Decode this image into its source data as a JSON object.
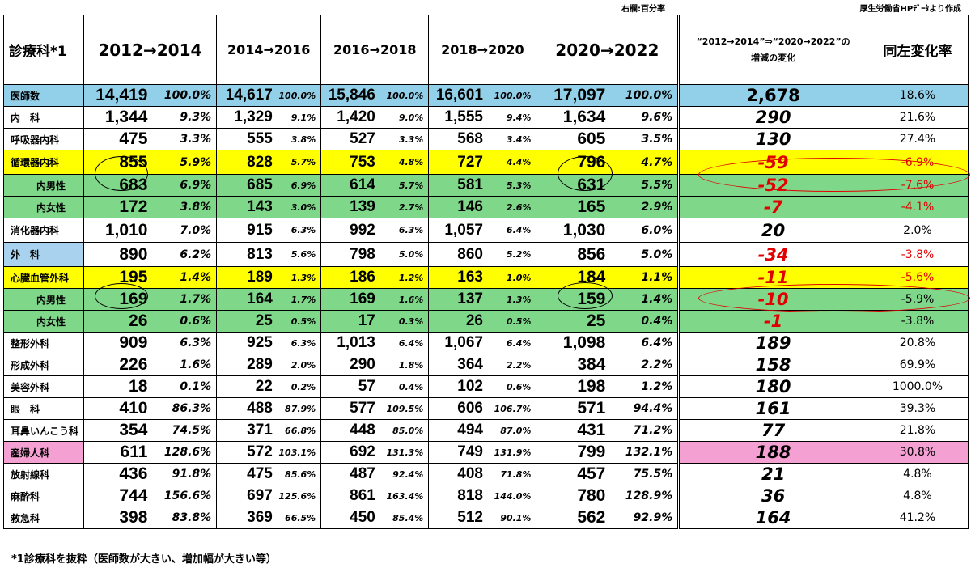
{
  "note_right": "右欄:百分率",
  "note_source": "厚生労働省HPﾃﾞｰﾀより作成",
  "header": {
    "dept": "診療科*1",
    "periods": [
      "2012→2014",
      "2014→2016",
      "2016→2018",
      "2018→2020",
      "2020→2022"
    ],
    "change_line1": "“2012→2014”⇒“2020→2022”の",
    "change_line2": "増減の変化",
    "rate": "同左変化率"
  },
  "rows": [
    {
      "name": "医師数",
      "vals": [
        [
          "14,419",
          "100.0%"
        ],
        [
          "14,617",
          "100.0%"
        ],
        [
          "15,846",
          "100.0%"
        ],
        [
          "16,601",
          "100.0%"
        ],
        [
          "17,097",
          "100.0%"
        ]
      ],
      "change": "2,678",
      "rate": "18.6%"
    },
    {
      "name": "内　科",
      "vals": [
        [
          "1,344",
          "9.3%"
        ],
        [
          "1,329",
          "9.1%"
        ],
        [
          "1,420",
          "9.0%"
        ],
        [
          "1,555",
          "9.4%"
        ],
        [
          "1,634",
          "9.6%"
        ]
      ],
      "change": "290",
      "rate": "21.6%"
    },
    {
      "name": "呼吸器内科",
      "vals": [
        [
          "475",
          "3.3%"
        ],
        [
          "555",
          "3.8%"
        ],
        [
          "527",
          "3.3%"
        ],
        [
          "568",
          "3.4%"
        ],
        [
          "605",
          "3.5%"
        ]
      ],
      "change": "130",
      "rate": "27.4%"
    },
    {
      "name": "循環器内科",
      "vals": [
        [
          "855",
          "5.9%"
        ],
        [
          "828",
          "5.7%"
        ],
        [
          "753",
          "4.8%"
        ],
        [
          "727",
          "4.4%"
        ],
        [
          "796",
          "4.7%"
        ]
      ],
      "change": "-59",
      "rate": "-6.9%"
    },
    {
      "name": "内男性",
      "vals": [
        [
          "683",
          "6.9%"
        ],
        [
          "685",
          "6.9%"
        ],
        [
          "614",
          "5.7%"
        ],
        [
          "581",
          "5.3%"
        ],
        [
          "631",
          "5.5%"
        ]
      ],
      "change": "-52",
      "rate": "-7.6%"
    },
    {
      "name": "内女性",
      "vals": [
        [
          "172",
          "3.8%"
        ],
        [
          "143",
          "3.0%"
        ],
        [
          "139",
          "2.7%"
        ],
        [
          "146",
          "2.6%"
        ],
        [
          "165",
          "2.9%"
        ]
      ],
      "change": "-7",
      "rate": "-4.1%"
    },
    {
      "name": "消化器内科",
      "vals": [
        [
          "1,010",
          "7.0%"
        ],
        [
          "915",
          "6.3%"
        ],
        [
          "992",
          "6.3%"
        ],
        [
          "1,057",
          "6.4%"
        ],
        [
          "1,030",
          "6.0%"
        ]
      ],
      "change": "20",
      "rate": "2.0%"
    },
    {
      "name": "外　科",
      "vals": [
        [
          "890",
          "6.2%"
        ],
        [
          "813",
          "5.6%"
        ],
        [
          "798",
          "5.0%"
        ],
        [
          "860",
          "5.2%"
        ],
        [
          "856",
          "5.0%"
        ]
      ],
      "change": "-34",
      "rate": "-3.8%"
    },
    {
      "name": "心臓血管外科",
      "vals": [
        [
          "195",
          "1.4%"
        ],
        [
          "189",
          "1.3%"
        ],
        [
          "186",
          "1.2%"
        ],
        [
          "163",
          "1.0%"
        ],
        [
          "184",
          "1.1%"
        ]
      ],
      "change": "-11",
      "rate": "-5.6%"
    },
    {
      "name": "内男性",
      "vals": [
        [
          "169",
          "1.7%"
        ],
        [
          "164",
          "1.7%"
        ],
        [
          "169",
          "1.6%"
        ],
        [
          "137",
          "1.3%"
        ],
        [
          "159",
          "1.4%"
        ]
      ],
      "change": "-10",
      "rate": "-5.9%"
    },
    {
      "name": "内女性",
      "vals": [
        [
          "26",
          "0.6%"
        ],
        [
          "25",
          "0.5%"
        ],
        [
          "17",
          "0.3%"
        ],
        [
          "26",
          "0.5%"
        ],
        [
          "25",
          "0.4%"
        ]
      ],
      "change": "-1",
      "rate": "-3.8%"
    },
    {
      "name": "整形外科",
      "vals": [
        [
          "909",
          "6.3%"
        ],
        [
          "925",
          "6.3%"
        ],
        [
          "1,013",
          "6.4%"
        ],
        [
          "1,067",
          "6.4%"
        ],
        [
          "1,098",
          "6.4%"
        ]
      ],
      "change": "189",
      "rate": "20.8%"
    },
    {
      "name": "形成外科",
      "vals": [
        [
          "226",
          "1.6%"
        ],
        [
          "289",
          "2.0%"
        ],
        [
          "290",
          "1.8%"
        ],
        [
          "364",
          "2.2%"
        ],
        [
          "384",
          "2.2%"
        ]
      ],
      "change": "158",
      "rate": "69.9%"
    },
    {
      "name": "美容外科",
      "vals": [
        [
          "18",
          "0.1%"
        ],
        [
          "22",
          "0.2%"
        ],
        [
          "57",
          "0.4%"
        ],
        [
          "102",
          "0.6%"
        ],
        [
          "198",
          "1.2%"
        ]
      ],
      "change": "180",
      "rate": "1000.0%"
    },
    {
      "name": "眼　科",
      "vals": [
        [
          "410",
          "86.3%"
        ],
        [
          "488",
          "87.9%"
        ],
        [
          "577",
          "109.5%"
        ],
        [
          "606",
          "106.7%"
        ],
        [
          "571",
          "94.4%"
        ]
      ],
      "change": "161",
      "rate": "39.3%"
    },
    {
      "name": "耳鼻いんこう科",
      "vals": [
        [
          "354",
          "74.5%"
        ],
        [
          "371",
          "66.8%"
        ],
        [
          "448",
          "85.0%"
        ],
        [
          "494",
          "87.0%"
        ],
        [
          "431",
          "71.2%"
        ]
      ],
      "change": "77",
      "rate": "21.8%"
    },
    {
      "name": "産婦人科",
      "vals": [
        [
          "611",
          "128.6%"
        ],
        [
          "572",
          "103.1%"
        ],
        [
          "692",
          "131.3%"
        ],
        [
          "749",
          "131.9%"
        ],
        [
          "799",
          "132.1%"
        ]
      ],
      "change": "188",
      "rate": "30.8%"
    },
    {
      "name": "放射線科",
      "vals": [
        [
          "436",
          "91.8%"
        ],
        [
          "475",
          "85.6%"
        ],
        [
          "487",
          "92.4%"
        ],
        [
          "408",
          "71.8%"
        ],
        [
          "457",
          "75.5%"
        ]
      ],
      "change": "21",
      "rate": "4.8%"
    },
    {
      "name": "麻酔科",
      "vals": [
        [
          "744",
          "156.6%"
        ],
        [
          "697",
          "125.6%"
        ],
        [
          "861",
          "163.4%"
        ],
        [
          "818",
          "144.0%"
        ],
        [
          "780",
          "128.9%"
        ]
      ],
      "change": "36",
      "rate": "4.8%"
    },
    {
      "name": "救急科",
      "vals": [
        [
          "398",
          "83.8%"
        ],
        [
          "369",
          "66.5%"
        ],
        [
          "450",
          "85.4%"
        ],
        [
          "512",
          "90.1%"
        ],
        [
          "562",
          "92.9%"
        ]
      ],
      "change": "164",
      "rate": "41.2%"
    }
  ],
  "footnote": "*1診療科を抜粋（医師数が大きい、増加幅が大きい等）"
}
